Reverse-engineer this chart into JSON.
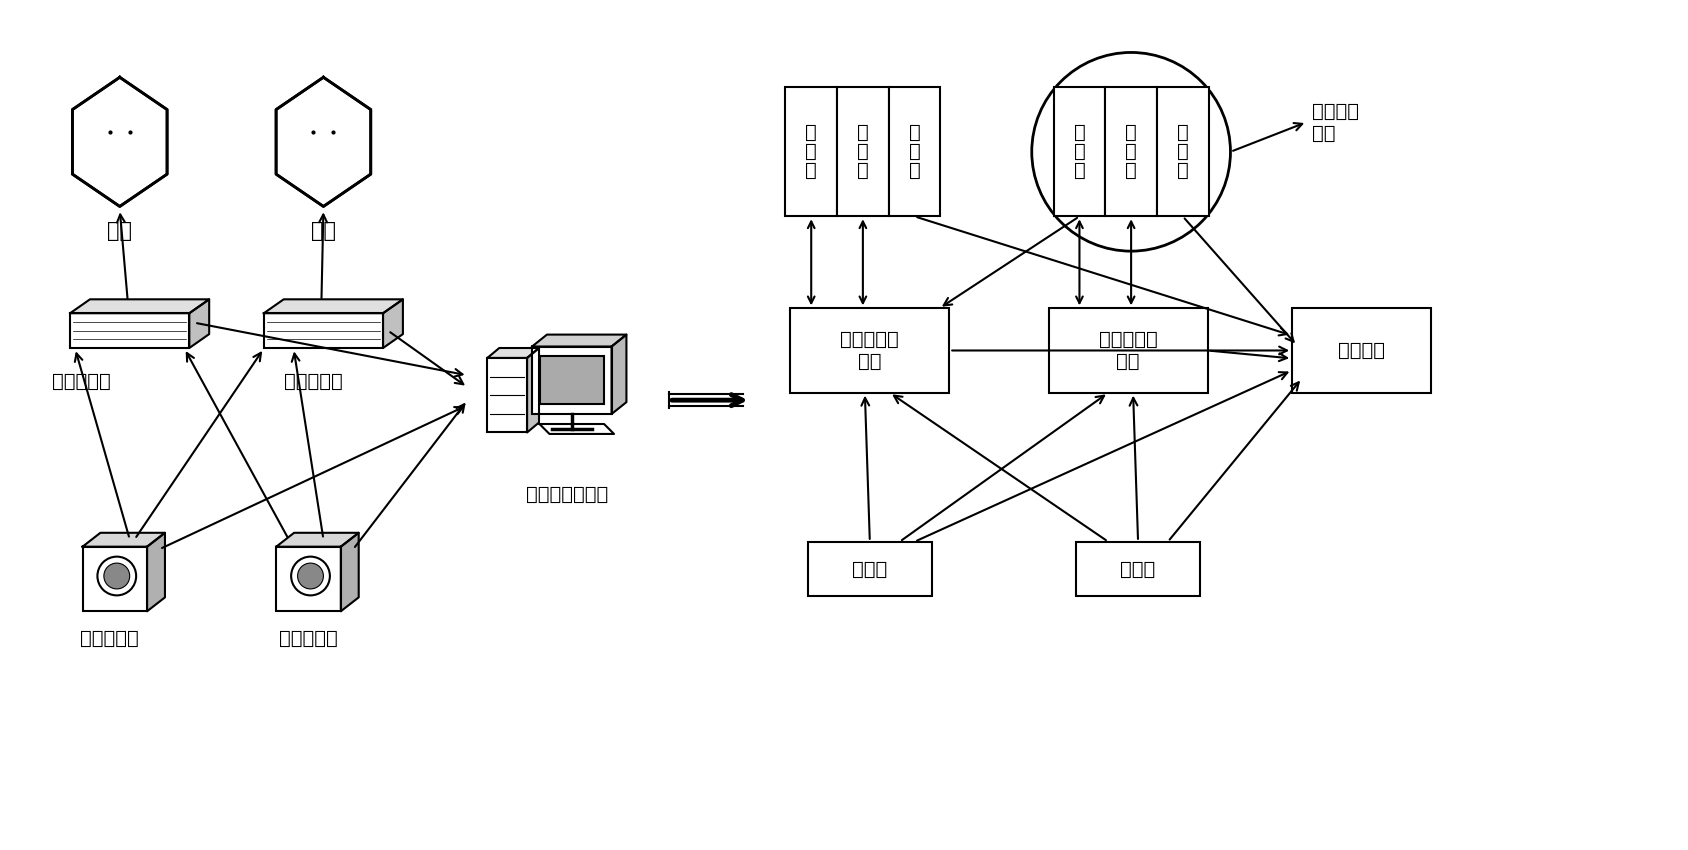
{
  "background_color": "#ffffff",
  "left_diagram": {
    "chiller_label": "冷机",
    "fan_label": "风机",
    "chiller_ctrl_label": "冷机控制器",
    "fan_ctrl_label": "风机控制器",
    "server_label": "系统监控服务器",
    "temp_sensor_label": "温度传感器",
    "humid_sensor_label": "湿度传感器"
  },
  "right_diagram": {
    "node1_label": "设定值加工\n节点",
    "node2_label": "设定值加工\n节点",
    "node3_label": "管理节点",
    "measure1_label": "测量源",
    "measure2_label": "测量源",
    "subset_label": "一个节点\n子集",
    "g1_boxes": [
      [
        "设",
        "定",
        "汇"
      ],
      [
        "测",
        "量",
        "源"
      ],
      [
        "设",
        "定",
        "源"
      ]
    ],
    "g2_boxes": [
      [
        "设",
        "定",
        "汇"
      ],
      [
        "测",
        "量",
        "源"
      ],
      [
        "设",
        "定",
        "源"
      ]
    ]
  },
  "lw": 1.5,
  "fs": 14
}
